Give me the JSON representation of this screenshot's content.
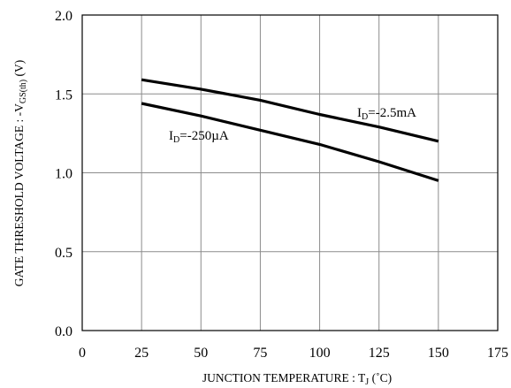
{
  "chart_data": {
    "type": "line",
    "x_axis": {
      "label_main": "JUNCTION TEMPERATURE : T",
      "label_sub": "J",
      "label_tail": " (˚C)",
      "range": [
        0,
        175
      ],
      "ticks": [
        0,
        25,
        50,
        75,
        100,
        125,
        150,
        175
      ],
      "tick_labels": [
        "0",
        "25",
        "50",
        "75",
        "100",
        "125",
        "150",
        "175"
      ]
    },
    "y_axis": {
      "label_main": "GATE THRESHOLD VOLTAGE : -V",
      "label_sub": "GS(th)",
      "label_tail": " (V)",
      "range": [
        0,
        2.0
      ],
      "ticks": [
        0,
        0.5,
        1.0,
        1.5,
        2.0
      ],
      "tick_labels": [
        "0.0",
        "0.5",
        "1.0",
        "1.5",
        "2.0"
      ]
    },
    "grid": true,
    "series": [
      {
        "label_main": "I",
        "label_sub": "D",
        "label_tail": "=-2.5mA",
        "x": [
          25,
          50,
          75,
          100,
          125,
          150
        ],
        "y": [
          1.59,
          1.53,
          1.46,
          1.37,
          1.29,
          1.2
        ]
      },
      {
        "label_main": "I",
        "label_sub": "D",
        "label_tail": "=-250µA",
        "x": [
          25,
          50,
          75,
          100,
          125,
          150
        ],
        "y": [
          1.44,
          1.36,
          1.27,
          1.18,
          1.07,
          0.95
        ]
      }
    ]
  }
}
